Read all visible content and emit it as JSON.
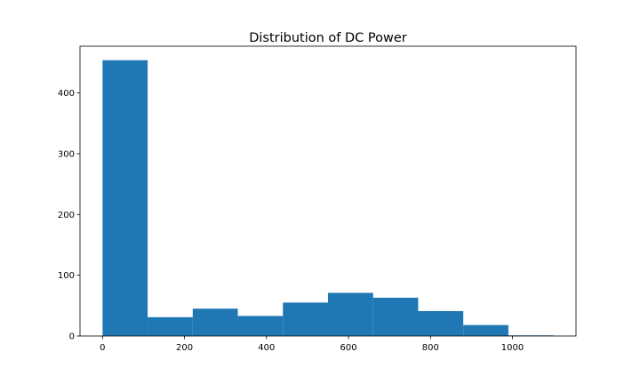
{
  "chart_data": {
    "type": "bar",
    "title": "Distribution of DC Power",
    "xlabel": "",
    "ylabel": "",
    "xlim": [
      -55,
      1155
    ],
    "ylim": [
      0,
      477
    ],
    "grid": false,
    "bins": [
      {
        "start": 0,
        "end": 110,
        "count": 454
      },
      {
        "start": 110,
        "end": 220,
        "count": 31
      },
      {
        "start": 220,
        "end": 330,
        "count": 45
      },
      {
        "start": 330,
        "end": 440,
        "count": 33
      },
      {
        "start": 440,
        "end": 550,
        "count": 55
      },
      {
        "start": 550,
        "end": 660,
        "count": 71
      },
      {
        "start": 660,
        "end": 770,
        "count": 63
      },
      {
        "start": 770,
        "end": 880,
        "count": 41
      },
      {
        "start": 880,
        "end": 990,
        "count": 18
      },
      {
        "start": 990,
        "end": 1100,
        "count": 1
      }
    ],
    "x_ticks": [
      0,
      200,
      400,
      600,
      800,
      1000
    ],
    "y_ticks": [
      0,
      100,
      200,
      300,
      400
    ],
    "bar_color": "#1f77b4"
  }
}
